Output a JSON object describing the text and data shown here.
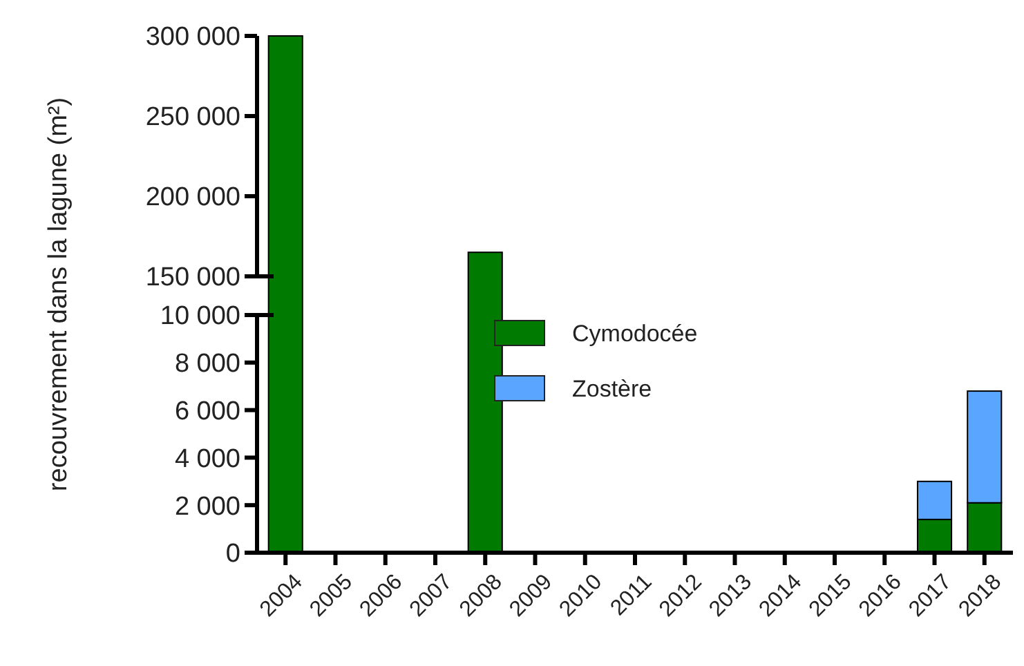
{
  "chart_data": [
    {
      "type": "bar",
      "tick_labels": "y",
      "legend": false,
      "grid": false,
      "categories": [
        "2004",
        "2005",
        "2006",
        "2007",
        "2008",
        "2009",
        "2010",
        "2011",
        "2012",
        "2013",
        "2014",
        "2015",
        "2016",
        "2017",
        "2018"
      ],
      "series": [
        {
          "color": "#007a00",
          "values": [
            300000,
            null,
            null,
            null,
            165000,
            null,
            null,
            null,
            null,
            null,
            null,
            null,
            null,
            null,
            null
          ]
        }
      ],
      "ylim": [
        150000,
        300000
      ],
      "yticks": [
        {
          "value": 150000,
          "label": "150 000"
        },
        {
          "value": 200000,
          "label": "200 000"
        },
        {
          "value": 250000,
          "label": "250 000"
        },
        {
          "value": 300000,
          "label": "300 000"
        }
      ]
    },
    {
      "type": "bar",
      "stacked": true,
      "ylabel": "recouvrement dans la lagune (m²)",
      "legend": "top",
      "grid": false,
      "categories": [
        "2004",
        "2005",
        "2006",
        "2007",
        "2008",
        "2009",
        "2010",
        "2011",
        "2012",
        "2013",
        "2014",
        "2015",
        "2016",
        "2017",
        "2018"
      ],
      "series": [
        {
          "name": "Cymodocée",
          "color": "#007a00",
          "values": [
            null,
            0,
            0,
            0,
            null,
            0,
            0,
            0,
            0,
            0,
            50,
            0,
            0,
            1400,
            2100
          ]
        },
        {
          "name": "Zostère",
          "color": "#5aa5ff",
          "values": [
            0,
            0,
            0,
            0,
            0,
            0,
            0,
            0,
            0,
            0,
            0,
            0,
            0,
            1600,
            4700
          ]
        }
      ],
      "ylim": [
        0,
        10000
      ],
      "yticks": [
        0,
        {
          "value": 2000,
          "label": "2 000"
        },
        {
          "value": 4000,
          "label": "4 000"
        },
        {
          "value": 6000,
          "label": "6 000"
        },
        {
          "value": 8000,
          "label": "8 000"
        },
        {
          "value": 10000,
          "label": "10 000"
        }
      ]
    }
  ]
}
